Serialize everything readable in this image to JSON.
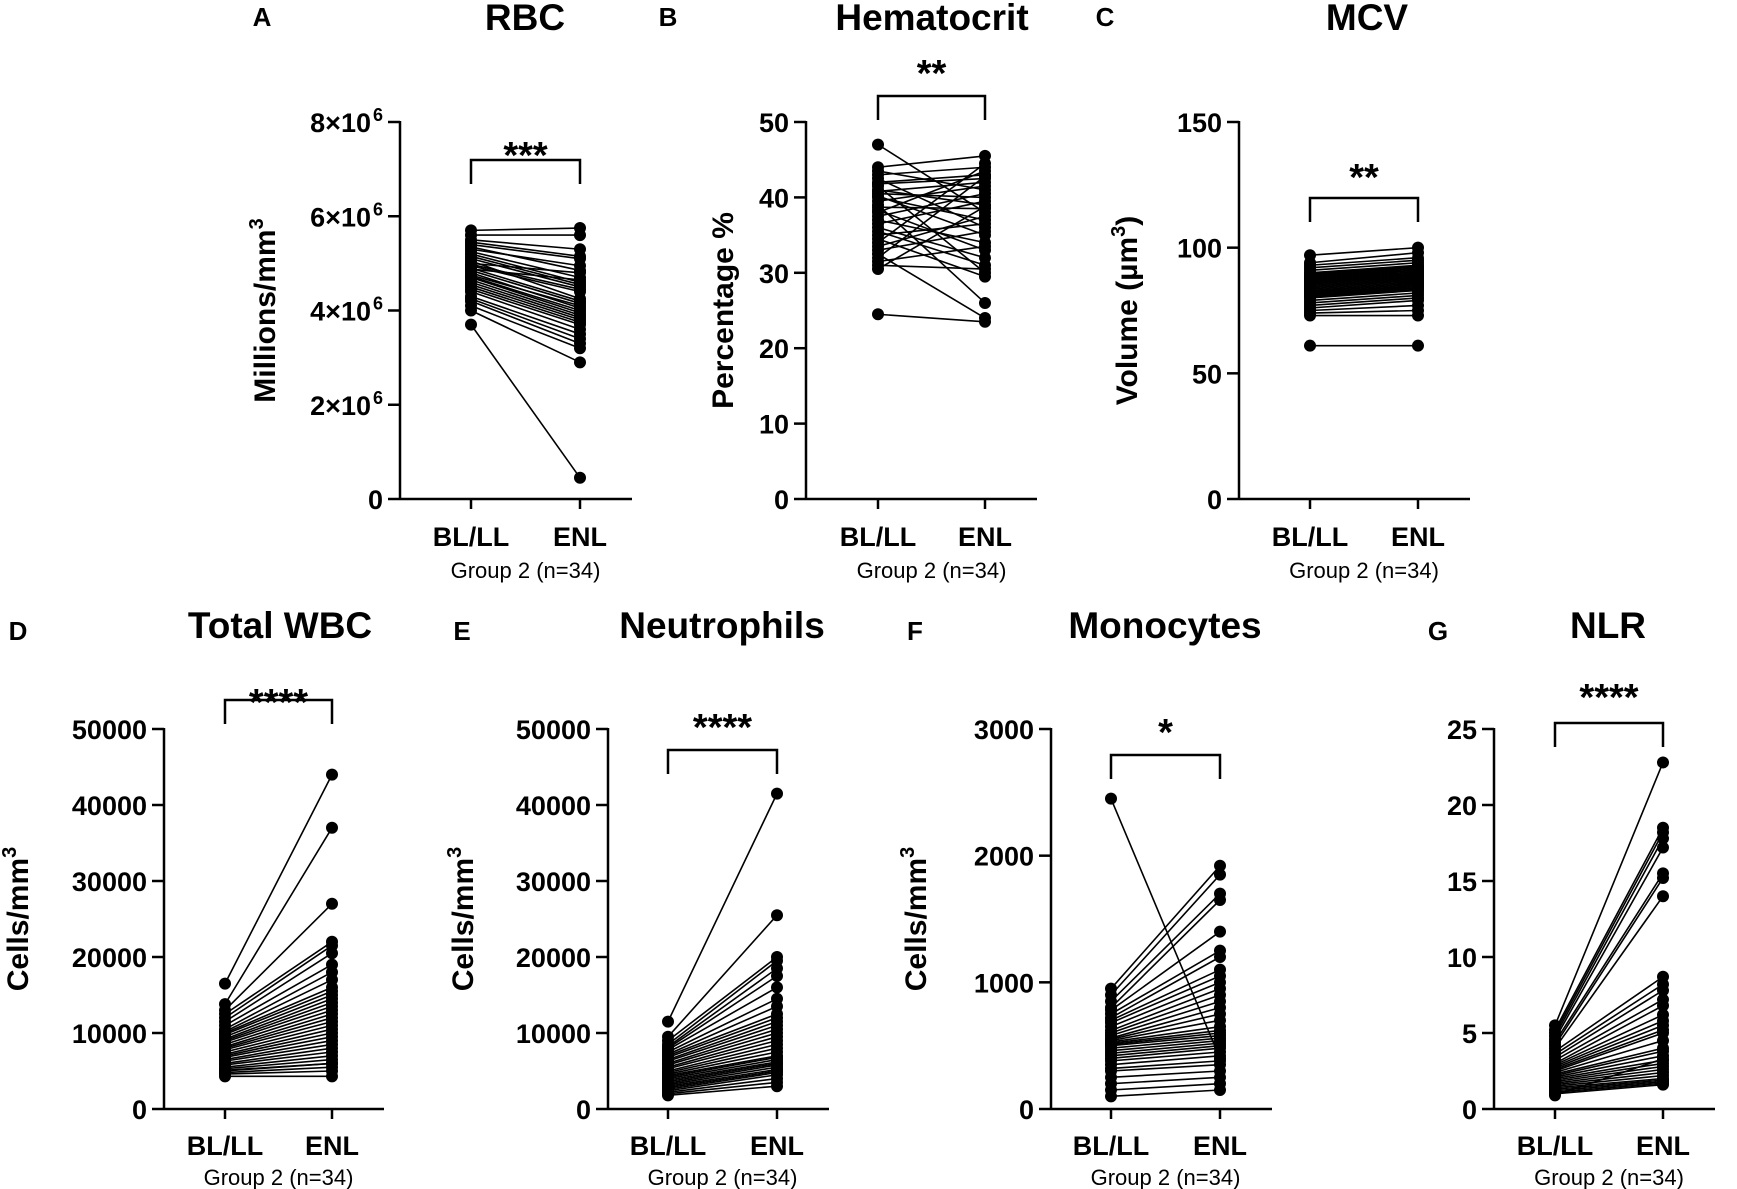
{
  "chart_data": [
    {
      "panel": "A",
      "title": "RBC",
      "type": "scatter",
      "ylabel_main": "Millions/mm",
      "ylabel_sup": "3",
      "ylim": [
        0,
        8000000
      ],
      "yticks": [
        {
          "value": 0,
          "base": "0",
          "exp": ""
        },
        {
          "value": 2000000,
          "base": "2×10",
          "exp": "6"
        },
        {
          "value": 4000000,
          "base": "4×10",
          "exp": "6"
        },
        {
          "value": 6000000,
          "base": "6×10",
          "exp": "6"
        },
        {
          "value": 8000000,
          "base": "8×10",
          "exp": "6"
        }
      ],
      "categories": [
        "BL/LL",
        "ENL"
      ],
      "group_label": "Group 2 (n=34)",
      "significance": "***",
      "series": [
        {
          "name": "BL/LL",
          "values": [
            5700000,
            5600000,
            5500000,
            5450000,
            5400000,
            5350000,
            5300000,
            5250000,
            5200000,
            5150000,
            5100000,
            5050000,
            5000000,
            4980000,
            4950000,
            4900000,
            4880000,
            4850000,
            4800000,
            4750000,
            4720000,
            4700000,
            4650000,
            4600000,
            4550000,
            4500000,
            4450000,
            4400000,
            4300000,
            4250000,
            4200000,
            4100000,
            4000000,
            3700000
          ]
        },
        {
          "name": "ENL",
          "values": [
            5750000,
            5600000,
            5300000,
            5150000,
            5100000,
            4850000,
            4950000,
            4700000,
            4600000,
            4550000,
            4500000,
            4250000,
            4800000,
            4450000,
            4400000,
            4200000,
            4650000,
            4150000,
            4050000,
            4100000,
            4000000,
            3950000,
            3900000,
            3850000,
            3800000,
            3750000,
            3700000,
            3600000,
            3500000,
            3400000,
            3300000,
            3200000,
            2900000,
            450000
          ]
        }
      ]
    },
    {
      "panel": "B",
      "title": "Hematocrit",
      "type": "scatter",
      "ylabel_main": "Percentage %",
      "ylabel_sup": "",
      "ylim": [
        0,
        50
      ],
      "yticks": [
        {
          "value": 0,
          "base": "0",
          "exp": ""
        },
        {
          "value": 10,
          "base": "10",
          "exp": ""
        },
        {
          "value": 20,
          "base": "20",
          "exp": ""
        },
        {
          "value": 30,
          "base": "30",
          "exp": ""
        },
        {
          "value": 40,
          "base": "40",
          "exp": ""
        },
        {
          "value": 50,
          "base": "50",
          "exp": ""
        }
      ],
      "categories": [
        "BL/LL",
        "ENL"
      ],
      "group_label": "Group 2 (n=34)",
      "significance": "**",
      "series": [
        {
          "name": "BL/LL",
          "values": [
            47,
            44,
            43.5,
            43,
            42.5,
            42,
            41.8,
            41.5,
            41,
            40.8,
            40.5,
            40.2,
            40,
            39.5,
            39,
            38.7,
            38.3,
            38,
            37.5,
            37,
            36.5,
            36,
            35.5,
            35,
            34.5,
            34,
            33.5,
            33,
            32.5,
            32,
            31.5,
            31,
            30.5,
            24.5
          ]
        },
        {
          "name": "ENL",
          "values": [
            38,
            45.5,
            41,
            44,
            36,
            43,
            42.5,
            30,
            39,
            42,
            40,
            35,
            37,
            41.5,
            26,
            38.5,
            33,
            43.5,
            40.5,
            34,
            39.5,
            32,
            31,
            36.5,
            29.5,
            44.5,
            37.5,
            35.5,
            24,
            42.8,
            33.5,
            30.5,
            38.8,
            23.5
          ]
        }
      ]
    },
    {
      "panel": "C",
      "title": "MCV",
      "type": "scatter",
      "ylabel_main": "Volume (µm",
      "ylabel_sup": "3",
      "ylabel_after": ")",
      "ylim": [
        0,
        150
      ],
      "yticks": [
        {
          "value": 0,
          "base": "0",
          "exp": ""
        },
        {
          "value": 50,
          "base": "50",
          "exp": ""
        },
        {
          "value": 100,
          "base": "100",
          "exp": ""
        },
        {
          "value": 150,
          "base": "150",
          "exp": ""
        }
      ],
      "categories": [
        "BL/LL",
        "ENL"
      ],
      "group_label": "Group 2 (n=34)",
      "significance": "**",
      "series": [
        {
          "name": "BL/LL",
          "values": [
            97,
            94,
            93,
            92,
            91,
            90,
            89.5,
            89,
            88.5,
            88,
            87.5,
            87,
            86.5,
            86,
            85.5,
            85,
            84.5,
            84,
            83.5,
            83,
            82.5,
            82,
            81.5,
            81,
            80.5,
            80,
            79,
            78,
            77,
            76,
            75,
            74,
            73,
            61
          ]
        },
        {
          "name": "ENL",
          "values": [
            100,
            98,
            96,
            95,
            94,
            93,
            92.5,
            92,
            91.5,
            91,
            90.5,
            90,
            89.5,
            89,
            88.5,
            88,
            87.5,
            87,
            86.5,
            86,
            85.5,
            85,
            84.5,
            84,
            83.5,
            83,
            82,
            81,
            80,
            79,
            77,
            75,
            73,
            61
          ]
        }
      ]
    },
    {
      "panel": "D",
      "title": "Total WBC",
      "type": "scatter",
      "ylabel_main": "Cells/mm",
      "ylabel_sup": "3",
      "ylim": [
        0,
        50000
      ],
      "yticks": [
        {
          "value": 0,
          "base": "0",
          "exp": ""
        },
        {
          "value": 10000,
          "base": "10000",
          "exp": ""
        },
        {
          "value": 20000,
          "base": "20000",
          "exp": ""
        },
        {
          "value": 30000,
          "base": "30000",
          "exp": ""
        },
        {
          "value": 40000,
          "base": "40000",
          "exp": ""
        },
        {
          "value": 50000,
          "base": "50000",
          "exp": ""
        }
      ],
      "categories": [
        "BL/LL",
        "ENL"
      ],
      "group_label": "Group 2 (n=34)",
      "significance": "****",
      "series": [
        {
          "name": "BL/LL",
          "values": [
            16500,
            13800,
            13000,
            12500,
            12000,
            11500,
            11000,
            10500,
            10200,
            10000,
            9800,
            9500,
            9200,
            9000,
            8800,
            8500,
            8200,
            8000,
            7800,
            7500,
            7200,
            7000,
            6800,
            6500,
            6300,
            6000,
            5800,
            5500,
            5300,
            5100,
            5000,
            4800,
            4600,
            4300
          ]
        },
        {
          "name": "ENL",
          "values": [
            44000,
            37000,
            27000,
            22000,
            21500,
            20500,
            19000,
            18000,
            17000,
            16000,
            15500,
            15000,
            14500,
            14000,
            13500,
            13000,
            12500,
            12000,
            11500,
            11000,
            10500,
            10000,
            9500,
            9000,
            8500,
            8000,
            7500,
            7000,
            6500,
            6000,
            6000,
            5500,
            5000,
            4300
          ]
        }
      ]
    },
    {
      "panel": "E",
      "title": "Neutrophils",
      "type": "scatter",
      "ylabel_main": "Cells/mm",
      "ylabel_sup": "3",
      "ylim": [
        0,
        50000
      ],
      "yticks": [
        {
          "value": 0,
          "base": "0",
          "exp": ""
        },
        {
          "value": 10000,
          "base": "10000",
          "exp": ""
        },
        {
          "value": 20000,
          "base": "20000",
          "exp": ""
        },
        {
          "value": 30000,
          "base": "30000",
          "exp": ""
        },
        {
          "value": 40000,
          "base": "40000",
          "exp": ""
        },
        {
          "value": 50000,
          "base": "50000",
          "exp": ""
        }
      ],
      "categories": [
        "BL/LL",
        "ENL"
      ],
      "group_label": "Group 2 (n=34)",
      "significance": "****",
      "series": [
        {
          "name": "BL/LL",
          "values": [
            11500,
            9500,
            9000,
            8500,
            8200,
            8000,
            7800,
            7500,
            7200,
            7000,
            6800,
            6500,
            6300,
            6000,
            5800,
            5500,
            5300,
            5000,
            4800,
            4600,
            4400,
            4200,
            4000,
            3800,
            3600,
            3400,
            3200,
            3000,
            2800,
            2600,
            2400,
            2200,
            2000,
            1800
          ]
        },
        {
          "name": "ENL",
          "values": [
            41500,
            25500,
            20000,
            19500,
            18500,
            17500,
            16000,
            14500,
            13500,
            12500,
            12000,
            11500,
            11000,
            10500,
            10000,
            9500,
            9000,
            8500,
            8000,
            7500,
            7000,
            6800,
            6500,
            6200,
            6000,
            5800,
            5500,
            5200,
            5000,
            4800,
            4500,
            4000,
            3500,
            3000
          ]
        }
      ]
    },
    {
      "panel": "F",
      "title": "Monocytes",
      "type": "scatter",
      "ylabel_main": "Cells/mm",
      "ylabel_sup": "3",
      "ylim": [
        0,
        3000
      ],
      "yticks": [
        {
          "value": 0,
          "base": "0",
          "exp": ""
        },
        {
          "value": 1000,
          "base": "1000",
          "exp": ""
        },
        {
          "value": 2000,
          "base": "2000",
          "exp": ""
        },
        {
          "value": 3000,
          "base": "3000",
          "exp": ""
        }
      ],
      "categories": [
        "BL/LL",
        "ENL"
      ],
      "group_label": "Group 2 (n=34)",
      "significance": "*",
      "series": [
        {
          "name": "BL/LL",
          "values": [
            2450,
            950,
            900,
            850,
            800,
            780,
            750,
            720,
            700,
            680,
            650,
            620,
            600,
            580,
            560,
            550,
            540,
            530,
            520,
            510,
            500,
            480,
            460,
            440,
            420,
            400,
            380,
            350,
            320,
            300,
            250,
            200,
            150,
            100
          ]
        },
        {
          "name": "ENL",
          "values": [
            400,
            1920,
            1850,
            1700,
            1650,
            1400,
            1250,
            1200,
            1100,
            1050,
            1000,
            950,
            900,
            850,
            800,
            750,
            700,
            650,
            620,
            600,
            580,
            560,
            540,
            520,
            500,
            480,
            450,
            420,
            380,
            350,
            300,
            250,
            200,
            150
          ]
        }
      ]
    },
    {
      "panel": "G",
      "title": "NLR",
      "type": "scatter",
      "ylabel_main": "",
      "ylabel_sup": "",
      "ylim": [
        0,
        25
      ],
      "yticks": [
        {
          "value": 0,
          "base": "0",
          "exp": ""
        },
        {
          "value": 5,
          "base": "5",
          "exp": ""
        },
        {
          "value": 10,
          "base": "10",
          "exp": ""
        },
        {
          "value": 15,
          "base": "15",
          "exp": ""
        },
        {
          "value": 20,
          "base": "20",
          "exp": ""
        },
        {
          "value": 25,
          "base": "25",
          "exp": ""
        }
      ],
      "categories": [
        "BL/LL",
        "ENL"
      ],
      "group_label": "Group 2 (n=34)",
      "significance": "****",
      "series": [
        {
          "name": "BL/LL",
          "values": [
            5.5,
            5.2,
            5,
            4.8,
            4.6,
            4.4,
            4.2,
            4,
            3.8,
            3.6,
            3.4,
            3.2,
            3,
            2.9,
            2.8,
            2.7,
            2.6,
            2.5,
            2.4,
            2.3,
            2.2,
            2.1,
            2,
            1.9,
            1.8,
            1.7,
            1.6,
            1.5,
            1.4,
            1.3,
            1.2,
            1.1,
            1,
            0.9
          ]
        },
        {
          "name": "ENL",
          "values": [
            22.8,
            18.5,
            18.2,
            17.8,
            17.2,
            15.5,
            15.2,
            14,
            8.7,
            8.2,
            7.8,
            7.2,
            6.8,
            6.2,
            5.8,
            5.5,
            5.2,
            5,
            4.5,
            4,
            3.8,
            3.5,
            3.2,
            3,
            2.8,
            2.6,
            2.4,
            2.2,
            2,
            1.9,
            1.8,
            1.7,
            1.6,
            3.3
          ]
        }
      ]
    }
  ]
}
